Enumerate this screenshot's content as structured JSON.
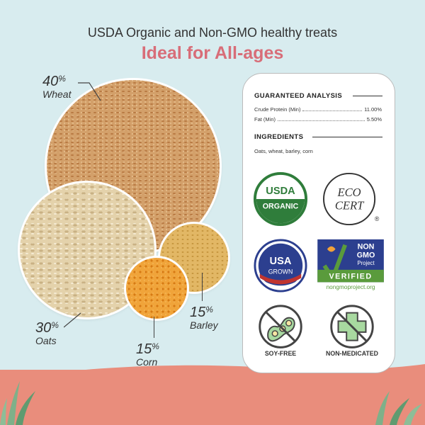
{
  "header": {
    "line1": "USDA Organic and Non-GMO healthy treats",
    "line2": "Ideal for All-ages"
  },
  "grains": [
    {
      "name": "Wheat",
      "percent": "40",
      "sign": "%"
    },
    {
      "name": "Oats",
      "percent": "30",
      "sign": "%"
    },
    {
      "name": "Barley",
      "percent": "15",
      "sign": "%"
    },
    {
      "name": "Corn",
      "percent": "15",
      "sign": "%"
    }
  ],
  "panel": {
    "analysis_title": "GUARANTEED ANALYSIS",
    "analysis": [
      {
        "label": "Crude Protein (Min)",
        "value": "11.00%"
      },
      {
        "label": "Fat (Min)",
        "value": "5.50%"
      }
    ],
    "ingredients_title": "INGREDIENTS",
    "ingredients": "Oats, wheat, barley, corn"
  },
  "badges": {
    "usda_top": "USDA",
    "usda_bottom": "ORGANIC",
    "ecocert_line1": "ECO",
    "ecocert_line2": "CERT",
    "ecocert_reg": "®",
    "usagrown_top": "USA",
    "usagrown_bottom": "GROWN",
    "nongmo_line1": "NON",
    "nongmo_line2": "GMO",
    "nongmo_line3": "Project",
    "nongmo_verified": "VERIFIED",
    "nongmo_url": "nongmoproject.org",
    "soyfree": "SOY-FREE",
    "nonmedicated": "NON-MEDICATED"
  },
  "colors": {
    "background": "#d8ecef",
    "accent_pink": "#d86d78",
    "ground": "#e98d7c",
    "usda_green": "#2f7d3b",
    "usa_blue": "#2c3f8f",
    "usa_red": "#c0342f",
    "nongmo_green": "#5a9b3c"
  }
}
